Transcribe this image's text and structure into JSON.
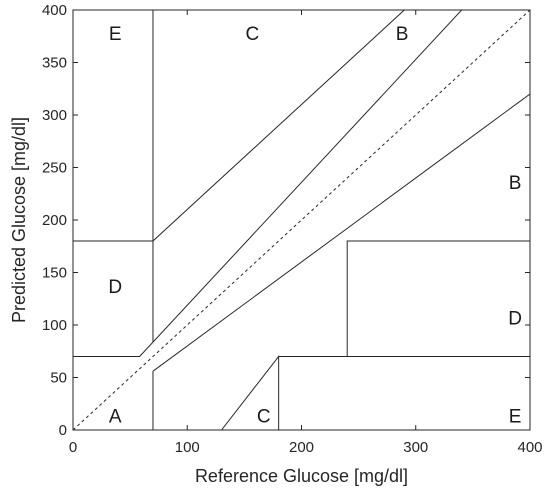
{
  "chart_data": {
    "type": "line",
    "title": "",
    "xlabel": "Reference Glucose [mg/dl]",
    "ylabel": "Predicted Glucose [mg/dl]",
    "xlim": [
      0,
      400
    ],
    "ylim": [
      0,
      400
    ],
    "xticks": [
      0,
      100,
      200,
      300,
      400
    ],
    "yticks": [
      0,
      50,
      100,
      150,
      200,
      250,
      300,
      350,
      400
    ],
    "xtick_labels": [
      "0",
      "100",
      "200",
      "300",
      "400"
    ],
    "ytick_labels": [
      "0",
      "50",
      "100",
      "150",
      "200",
      "250",
      "300",
      "350",
      "400"
    ],
    "grid": false,
    "identity_line": {
      "style": "dashed",
      "points": [
        [
          0,
          0
        ],
        [
          400,
          400
        ]
      ]
    },
    "zone_boundaries": [
      {
        "points": [
          [
            70,
            0
          ],
          [
            70,
            56
          ]
        ]
      },
      {
        "points": [
          [
            70,
            56
          ],
          [
            400,
            320
          ]
        ]
      },
      {
        "points": [
          [
            0,
            70
          ],
          [
            58.3,
            70
          ],
          [
            400,
            470
          ]
        ]
      },
      {
        "points": [
          [
            70,
            84
          ],
          [
            70,
            180
          ],
          [
            290,
            400
          ]
        ]
      },
      {
        "points": [
          [
            70,
            180
          ],
          [
            70,
            400
          ]
        ]
      },
      {
        "points": [
          [
            0,
            180
          ],
          [
            70,
            180
          ]
        ]
      },
      {
        "points": [
          [
            130,
            0
          ],
          [
            180,
            70
          ],
          [
            180,
            0
          ]
        ]
      },
      {
        "points": [
          [
            180,
            70
          ],
          [
            400,
            70
          ]
        ]
      },
      {
        "points": [
          [
            240,
            70
          ],
          [
            240,
            180
          ],
          [
            400,
            180
          ]
        ]
      }
    ],
    "zone_labels": [
      {
        "text": "E",
        "x": 37,
        "y": 378
      },
      {
        "text": "C",
        "x": 157,
        "y": 378
      },
      {
        "text": "B",
        "x": 288,
        "y": 378
      },
      {
        "text": "B",
        "x": 387,
        "y": 236
      },
      {
        "text": "D",
        "x": 37,
        "y": 137
      },
      {
        "text": "D",
        "x": 387,
        "y": 107
      },
      {
        "text": "A",
        "x": 37,
        "y": 14
      },
      {
        "text": "C",
        "x": 167,
        "y": 14
      },
      {
        "text": "E",
        "x": 387,
        "y": 14
      }
    ]
  }
}
